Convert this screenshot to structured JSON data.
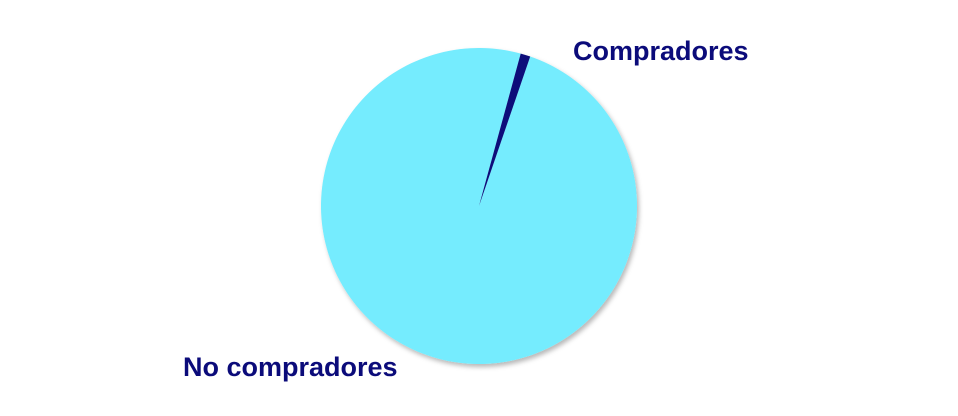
{
  "chart_data": {
    "type": "pie",
    "slices": [
      {
        "label": "No compradores",
        "value": 99,
        "color": "#74ecfe"
      },
      {
        "label": "Compradores",
        "value": 1,
        "color": "#0b0b7a"
      }
    ],
    "label_color": "#0b0b7a",
    "legend": "none"
  }
}
